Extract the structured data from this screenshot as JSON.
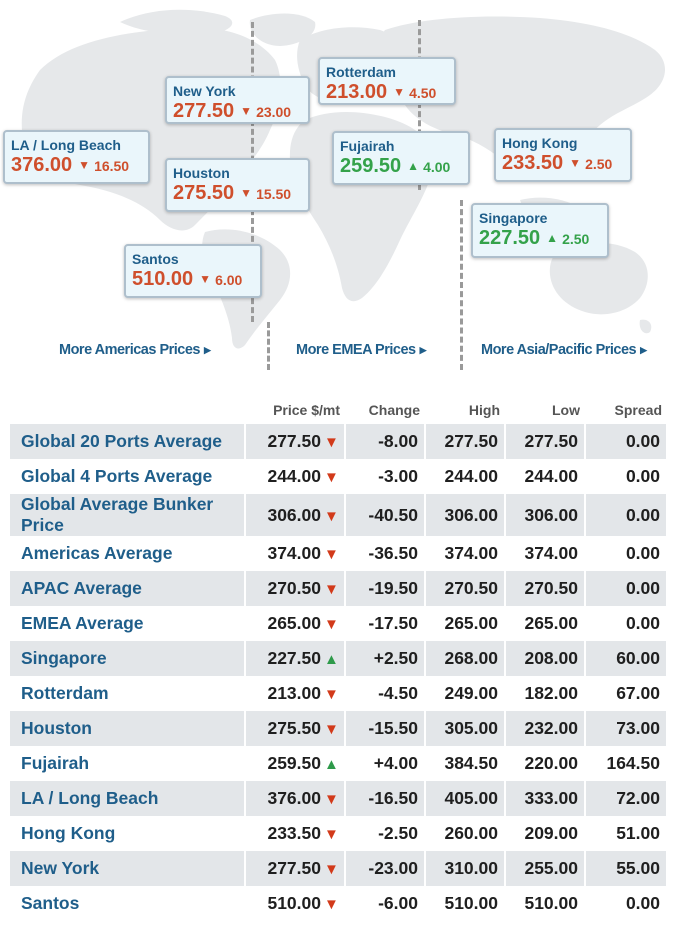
{
  "map": {
    "cards": [
      {
        "port": "New York",
        "price": "277.50",
        "change": "23.00",
        "dir": "down"
      },
      {
        "port": "Rotterdam",
        "price": "213.00",
        "change": "4.50",
        "dir": "down"
      },
      {
        "port": "LA / Long Beach",
        "price": "376.00",
        "change": "16.50",
        "dir": "down"
      },
      {
        "port": "Houston",
        "price": "275.50",
        "change": "15.50",
        "dir": "down"
      },
      {
        "port": "Fujairah",
        "price": "259.50",
        "change": "4.00",
        "dir": "up"
      },
      {
        "port": "Hong Kong",
        "price": "233.50",
        "change": "2.50",
        "dir": "down"
      },
      {
        "port": "Singapore",
        "price": "227.50",
        "change": "2.50",
        "dir": "up"
      },
      {
        "port": "Santos",
        "price": "510.00",
        "change": "6.00",
        "dir": "down"
      }
    ],
    "links": {
      "americas": "More Americas Prices",
      "emea": "More EMEA Prices",
      "apac": "More Asia/Pacific Prices"
    }
  },
  "table": {
    "headers": {
      "price": "Price $/mt",
      "change": "Change",
      "high": "High",
      "low": "Low",
      "spread": "Spread"
    },
    "rows": [
      {
        "name": "Global 20 Ports Average",
        "price": "277.50",
        "dir": "down",
        "change": "-8.00",
        "high": "277.50",
        "low": "277.50",
        "spread": "0.00"
      },
      {
        "name": "Global 4 Ports Average",
        "price": "244.00",
        "dir": "down",
        "change": "-3.00",
        "high": "244.00",
        "low": "244.00",
        "spread": "0.00"
      },
      {
        "name": "Global Average Bunker Price",
        "price": "306.00",
        "dir": "down",
        "change": "-40.50",
        "high": "306.00",
        "low": "306.00",
        "spread": "0.00"
      },
      {
        "name": "Americas Average",
        "price": "374.00",
        "dir": "down",
        "change": "-36.50",
        "high": "374.00",
        "low": "374.00",
        "spread": "0.00"
      },
      {
        "name": "APAC Average",
        "price": "270.50",
        "dir": "down",
        "change": "-19.50",
        "high": "270.50",
        "low": "270.50",
        "spread": "0.00"
      },
      {
        "name": "EMEA Average",
        "price": "265.00",
        "dir": "down",
        "change": "-17.50",
        "high": "265.00",
        "low": "265.00",
        "spread": "0.00"
      },
      {
        "name": "Singapore",
        "price": "227.50",
        "dir": "up",
        "change": "+2.50",
        "high": "268.00",
        "low": "208.00",
        "spread": "60.00"
      },
      {
        "name": "Rotterdam",
        "price": "213.00",
        "dir": "down",
        "change": "-4.50",
        "high": "249.00",
        "low": "182.00",
        "spread": "67.00"
      },
      {
        "name": "Houston",
        "price": "275.50",
        "dir": "down",
        "change": "-15.50",
        "high": "305.00",
        "low": "232.00",
        "spread": "73.00"
      },
      {
        "name": "Fujairah",
        "price": "259.50",
        "dir": "up",
        "change": "+4.00",
        "high": "384.50",
        "low": "220.00",
        "spread": "164.50"
      },
      {
        "name": "LA / Long Beach",
        "price": "376.00",
        "dir": "down",
        "change": "-16.50",
        "high": "405.00",
        "low": "333.00",
        "spread": "72.00"
      },
      {
        "name": "Hong Kong",
        "price": "233.50",
        "dir": "down",
        "change": "-2.50",
        "high": "260.00",
        "low": "209.00",
        "spread": "51.00"
      },
      {
        "name": "New York",
        "price": "277.50",
        "dir": "down",
        "change": "-23.00",
        "high": "310.00",
        "low": "255.00",
        "spread": "55.00"
      },
      {
        "name": "Santos",
        "price": "510.00",
        "dir": "down",
        "change": "-6.00",
        "high": "510.00",
        "low": "510.00",
        "spread": "0.00"
      }
    ]
  },
  "icons": {
    "down": "triangle-down-icon",
    "up": "triangle-up-icon",
    "link_arrow": "triangle-right-icon"
  },
  "colors": {
    "down": "#cf4f2c",
    "up": "#34a24a",
    "link": "#1f5e8a",
    "row_shade": "#e3e6e9",
    "map_land": "#e6e8ea"
  }
}
